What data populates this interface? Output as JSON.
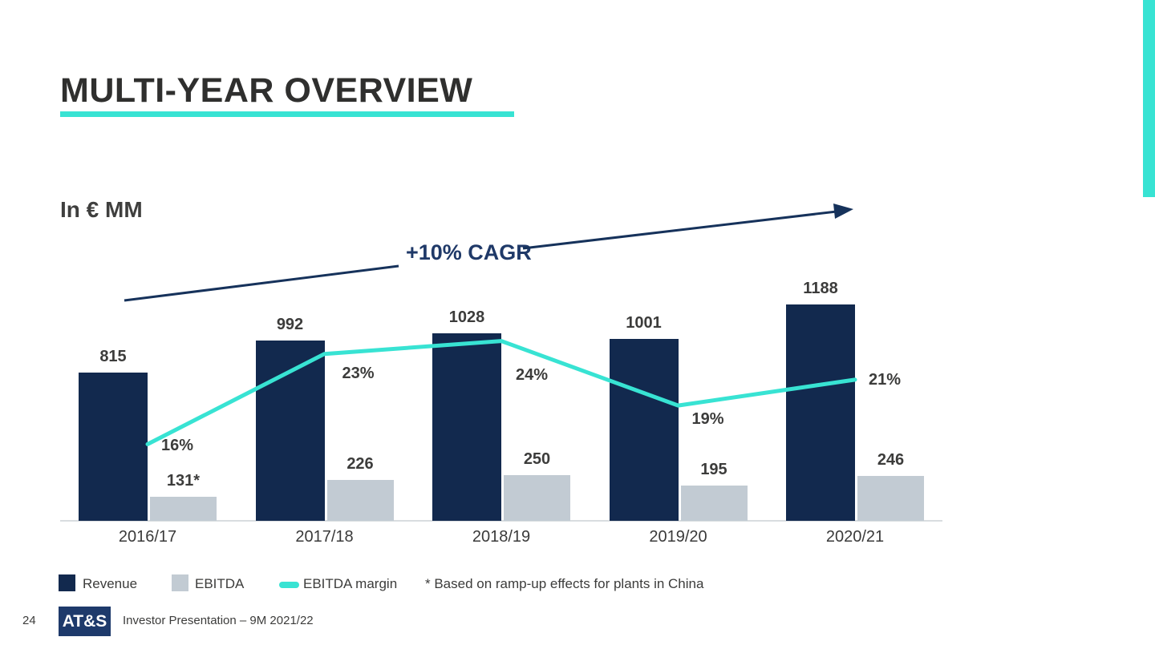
{
  "slide": {
    "title": "MULTI-YEAR OVERVIEW",
    "unit_label": "In € MM",
    "cagr_label": "+10% CAGR",
    "footnote": "* Based on ramp-up effects for plants in China",
    "page_number": "24",
    "logo_text": "AT&S",
    "footer_text": "Investor Presentation – 9M 2021/22"
  },
  "colors": {
    "revenue": "#12294E",
    "ebitda": "#C2CBD3",
    "margin_line": "#38E3D3",
    "accent": "#38E3D3",
    "arrow": "#16325B",
    "cagr_text": "#1F3968",
    "label_text": "#3C3C3B",
    "axis_line": "#D9DDE0",
    "logo": "#1E3A6B"
  },
  "chart_data": {
    "type": "bar",
    "title": "MULTI-YEAR OVERVIEW",
    "ylabel": "In € MM",
    "categories": [
      "2016/17",
      "2017/18",
      "2018/19",
      "2019/20",
      "2020/21"
    ],
    "series": [
      {
        "name": "Revenue",
        "type": "bar",
        "values": [
          815,
          992,
          1028,
          1001,
          1188
        ],
        "labels": [
          "815",
          "992",
          "1028",
          "1001",
          "1188"
        ]
      },
      {
        "name": "EBITDA",
        "type": "bar",
        "values": [
          131,
          226,
          250,
          195,
          246
        ],
        "labels": [
          "131*",
          "226",
          "250",
          "195",
          "246"
        ]
      },
      {
        "name": "EBITDA margin",
        "type": "line",
        "unit": "%",
        "values": [
          16,
          23,
          24,
          19,
          21
        ],
        "labels": [
          "16%",
          "23%",
          "24%",
          "19%",
          "21%"
        ]
      }
    ],
    "annotation": "+10% CAGR",
    "grid": false,
    "legend_position": "bottom",
    "footnote": "* Based on ramp-up effects for plants in China"
  },
  "legend": [
    {
      "label": "Revenue",
      "type": "square"
    },
    {
      "label": "EBITDA",
      "type": "square"
    },
    {
      "label": "EBITDA margin",
      "type": "line"
    }
  ]
}
